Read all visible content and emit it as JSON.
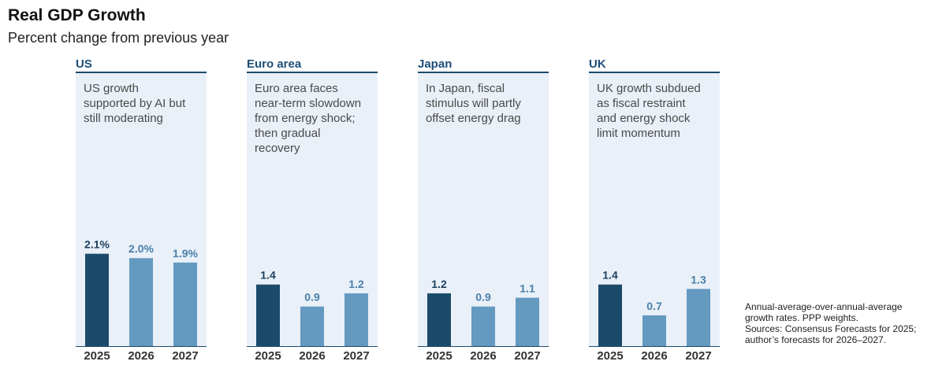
{
  "title": "Real GDP Growth",
  "subtitle": "Percent change from previous year",
  "colors": {
    "current": "#1c4a6b",
    "forecast": "#6499c0",
    "panel_bg": "#e9f0f8",
    "label_dark": "#1c3f5e",
    "label_light": "#4a7fa8"
  },
  "chart_data": [
    {
      "type": "bar",
      "title": "US",
      "note": [
        "US growth",
        "supported by AI but",
        "still moderating"
      ],
      "categories": [
        "2025",
        "2026",
        "2027"
      ],
      "values": [
        2.1,
        2.0,
        1.9
      ],
      "data_labels": [
        "2.1%",
        "2.0%",
        "1.9%"
      ],
      "ylim": [
        0,
        2.2
      ]
    },
    {
      "type": "bar",
      "title": "Euro area",
      "note": [
        "Euro area faces",
        "near-term slowdown",
        "from energy shock;",
        "then gradual",
        "recovery"
      ],
      "categories": [
        "2025",
        "2026",
        "2027"
      ],
      "values": [
        1.4,
        0.9,
        1.2
      ],
      "data_labels": [
        "1.4",
        "0.9",
        "1.2"
      ],
      "ylim": [
        0,
        2.2
      ]
    },
    {
      "type": "bar",
      "title": "Japan",
      "note": [
        "In Japan, fiscal",
        "stimulus will partly",
        "offset energy drag"
      ],
      "categories": [
        "2025",
        "2026",
        "2027"
      ],
      "values": [
        1.2,
        0.9,
        1.1
      ],
      "data_labels": [
        "1.2",
        "0.9",
        "1.1"
      ],
      "ylim": [
        0,
        2.2
      ]
    },
    {
      "type": "bar",
      "title": "UK",
      "note": [
        "UK growth subdued",
        "as fiscal restraint",
        "and energy shock",
        "limit momentum"
      ],
      "categories": [
        "2025",
        "2026",
        "2027"
      ],
      "values": [
        1.4,
        0.7,
        1.3
      ],
      "data_labels": [
        "1.4",
        "0.7",
        "1.3"
      ],
      "ylim": [
        0,
        2.2
      ]
    }
  ],
  "footnote": [
    "Annual-average-over-annual-average",
    "growth rates. PPP weights.",
    "Sources: Consensus Forecasts for 2025;",
    "author’s forecasts for 2026–2027."
  ]
}
